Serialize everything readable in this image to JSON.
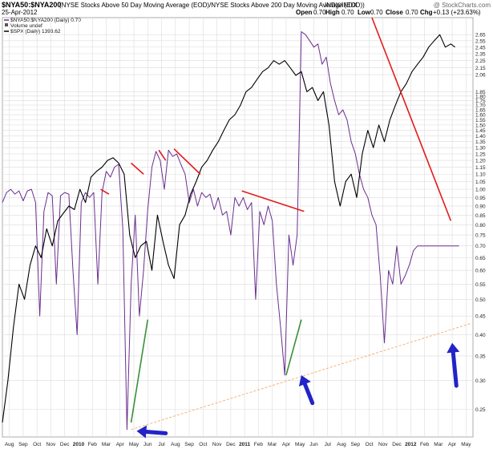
{
  "header": {
    "symbol": "$NYA50:$NYA200",
    "description": "(NYSE Stocks Above 50 Day Moving Average (EOD)/NYSE Stocks Above 200 Day Moving Average (EOD))",
    "exchange": "INDX/INDX",
    "date": "25-Apr-2012",
    "watermark": "@ StockCharts.com",
    "quote": {
      "open_label": "Open",
      "open": "0.70",
      "high_label": "High",
      "high": "0.70",
      "low_label": "Low",
      "low": "0.70",
      "close_label": "Close",
      "close": "0.70",
      "chg_label": "Chg",
      "chg": "+0.13 (+23.63%)"
    }
  },
  "legend": [
    {
      "label": "$NYA50:$NYA200 (Daily) 0.70",
      "color": "#6a2f8f",
      "marker": "line"
    },
    {
      "label": "Volume undef",
      "color": "#555555",
      "marker": "square"
    },
    {
      "label": "$SPX (Daily) 1393.62",
      "color": "#000000",
      "marker": "line"
    }
  ],
  "colors": {
    "ratio": "#6a2f8f",
    "spx": "#000000",
    "trend_red": "#e31b1b",
    "trend_green": "#3a8f3a",
    "support": "#f5b27a",
    "arrow": "#2323c8",
    "grid": "#dcdcdc"
  },
  "chart_data": {
    "type": "line",
    "yscale": "log",
    "ylim": [
      0.21,
      2.95
    ],
    "xlim": [
      0,
      45
    ],
    "y_ticks": [
      0.25,
      0.3,
      0.35,
      0.4,
      0.45,
      0.5,
      0.55,
      0.6,
      0.65,
      0.7,
      0.75,
      0.8,
      0.85,
      0.9,
      0.95,
      1.0,
      1.05,
      1.1,
      1.15,
      1.2,
      1.25,
      1.3,
      1.35,
      1.4,
      1.45,
      1.5,
      1.55,
      1.6,
      1.65,
      1.7,
      1.75,
      1.8,
      1.85,
      2.06,
      2.15,
      2.25,
      2.35,
      2.45,
      2.55,
      2.65
    ],
    "x_ticks": [
      {
        "label": "Aug",
        "x": 0.5,
        "bold": false
      },
      {
        "label": "Sep",
        "x": 1.5,
        "bold": false
      },
      {
        "label": "Oct",
        "x": 2.5,
        "bold": false
      },
      {
        "label": "Nov",
        "x": 3.5,
        "bold": false
      },
      {
        "label": "Dec",
        "x": 4.5,
        "bold": false
      },
      {
        "label": "2010",
        "x": 5.5,
        "bold": true
      },
      {
        "label": "Feb",
        "x": 6.5,
        "bold": false
      },
      {
        "label": "Mar",
        "x": 7.5,
        "bold": false
      },
      {
        "label": "Apr",
        "x": 8.5,
        "bold": false
      },
      {
        "label": "May",
        "x": 9.5,
        "bold": false
      },
      {
        "label": "Jun",
        "x": 10.5,
        "bold": false
      },
      {
        "label": "Jul",
        "x": 11.5,
        "bold": false
      },
      {
        "label": "Aug",
        "x": 12.5,
        "bold": false
      },
      {
        "label": "Sep",
        "x": 13.5,
        "bold": false
      },
      {
        "label": "Oct",
        "x": 14.5,
        "bold": false
      },
      {
        "label": "Nov",
        "x": 15.5,
        "bold": false
      },
      {
        "label": "Dec",
        "x": 16.5,
        "bold": false
      },
      {
        "label": "2011",
        "x": 17.5,
        "bold": true
      },
      {
        "label": "Feb",
        "x": 18.5,
        "bold": false
      },
      {
        "label": "Mar",
        "x": 19.5,
        "bold": false
      },
      {
        "label": "Apr",
        "x": 20.5,
        "bold": false
      },
      {
        "label": "May",
        "x": 21.5,
        "bold": false
      },
      {
        "label": "Jun",
        "x": 22.5,
        "bold": false
      },
      {
        "label": "Jul",
        "x": 23.5,
        "bold": false
      },
      {
        "label": "Aug",
        "x": 24.5,
        "bold": false
      },
      {
        "label": "Sep",
        "x": 25.5,
        "bold": false
      },
      {
        "label": "Oct",
        "x": 26.5,
        "bold": false
      },
      {
        "label": "Nov",
        "x": 27.5,
        "bold": false
      },
      {
        "label": "Dec",
        "x": 28.5,
        "bold": false
      },
      {
        "label": "2012",
        "x": 29.5,
        "bold": true
      },
      {
        "label": "Feb",
        "x": 30.5,
        "bold": false
      },
      {
        "label": "Mar",
        "x": 31.5,
        "bold": false
      },
      {
        "label": "Apr",
        "x": 32.5,
        "bold": false
      },
      {
        "label": "May",
        "x": 33.5,
        "bold": false
      }
    ],
    "grid": true,
    "series": [
      {
        "name": "$NYA50:$NYA200 (Daily)",
        "x": [
          0,
          0.3,
          0.6,
          0.9,
          1.2,
          1.5,
          1.8,
          2.1,
          2.4,
          2.7,
          3.0,
          3.3,
          3.6,
          3.9,
          4.2,
          4.5,
          4.8,
          5.1,
          5.4,
          5.7,
          6.0,
          6.3,
          6.6,
          6.9,
          7.2,
          7.5,
          7.8,
          8.1,
          8.4,
          8.7,
          9.0,
          9.3,
          9.6,
          9.9,
          10.2,
          10.5,
          10.8,
          11.1,
          11.4,
          11.7,
          12.0,
          12.3,
          12.6,
          12.9,
          13.2,
          13.5,
          13.8,
          14.1,
          14.4,
          14.7,
          15.0,
          15.3,
          15.6,
          15.9,
          16.2,
          16.5,
          16.8,
          17.1,
          17.4,
          17.7,
          18.0,
          18.3,
          18.6,
          18.9,
          19.2,
          19.5,
          19.8,
          20.1,
          20.4,
          20.7,
          21.0,
          21.3,
          21.6,
          21.9,
          22.2,
          22.5,
          22.8,
          23.1,
          23.4,
          23.7,
          24.0,
          24.3,
          24.6,
          24.9,
          25.2,
          25.5,
          25.8,
          26.1,
          26.4,
          26.7,
          27.0,
          27.3,
          27.6,
          27.9,
          28.2,
          28.5,
          28.8,
          29.1,
          29.4,
          29.7,
          30.0,
          30.3,
          30.6,
          30.9,
          31.2,
          31.5,
          31.8,
          32.1,
          32.4,
          32.7,
          33.0
        ],
        "values": [
          0.92,
          0.98,
          1.0,
          0.97,
          0.99,
          0.93,
          0.99,
          1.0,
          0.92,
          0.45,
          0.87,
          0.98,
          0.96,
          0.55,
          0.96,
          0.98,
          0.97,
          0.6,
          0.4,
          0.92,
          0.98,
          0.95,
          0.98,
          0.55,
          0.98,
          1.12,
          1.08,
          1.15,
          1.17,
          0.78,
          0.22,
          0.55,
          0.85,
          0.45,
          0.6,
          0.88,
          1.15,
          1.27,
          1.2,
          1.0,
          1.28,
          1.23,
          1.25,
          1.17,
          1.1,
          0.92,
          1.0,
          0.9,
          0.98,
          0.95,
          0.97,
          0.88,
          0.95,
          0.85,
          0.87,
          0.75,
          0.95,
          0.9,
          0.95,
          0.88,
          0.92,
          0.5,
          0.87,
          0.8,
          0.9,
          0.82,
          0.55,
          0.42,
          0.31,
          0.75,
          0.62,
          0.75,
          2.7,
          2.65,
          2.55,
          2.45,
          2.5,
          2.2,
          2.3,
          1.95,
          1.75,
          1.6,
          1.65,
          1.55,
          1.35,
          1.25,
          1.1,
          1.0,
          0.95,
          0.85,
          0.8,
          0.58,
          0.38,
          0.6,
          0.55,
          0.7,
          0.55,
          0.58,
          0.62,
          0.68,
          0.7,
          0.7,
          0.7,
          0.7,
          0.7,
          0.7,
          0.7,
          0.7,
          0.7,
          0.7,
          0.7
        ]
      },
      {
        "name": "$SPX (Daily)",
        "x": [
          0,
          0.4,
          0.8,
          1.2,
          1.6,
          2.0,
          2.4,
          2.8,
          3.2,
          3.6,
          4.0,
          4.4,
          4.8,
          5.2,
          5.6,
          6.0,
          6.4,
          6.8,
          7.2,
          7.6,
          8.0,
          8.4,
          8.8,
          9.2,
          9.6,
          10.0,
          10.4,
          10.8,
          11.2,
          11.6,
          12.0,
          12.4,
          12.8,
          13.2,
          13.6,
          14.0,
          14.4,
          14.8,
          15.2,
          15.6,
          16.0,
          16.4,
          16.8,
          17.2,
          17.6,
          18.0,
          18.4,
          18.8,
          19.2,
          19.6,
          20.0,
          20.4,
          20.8,
          21.2,
          21.6,
          22.0,
          22.4,
          22.8,
          23.2,
          23.6,
          24.0,
          24.4,
          24.8,
          25.2,
          25.6,
          26.0,
          26.4,
          26.8,
          27.2,
          27.6,
          28.0,
          28.4,
          28.8,
          29.2,
          29.6,
          30.0,
          30.4,
          30.8,
          31.2,
          31.6,
          32.0,
          32.4,
          32.7
        ],
        "values": [
          0.23,
          0.3,
          0.42,
          0.55,
          0.5,
          0.62,
          0.7,
          0.65,
          0.78,
          0.7,
          0.82,
          0.86,
          0.9,
          0.88,
          1.0,
          0.92,
          1.08,
          1.12,
          1.15,
          1.2,
          1.22,
          1.18,
          1.1,
          0.75,
          0.65,
          0.7,
          0.72,
          0.6,
          0.85,
          0.72,
          0.62,
          0.57,
          0.8,
          0.85,
          0.97,
          1.05,
          1.15,
          1.2,
          1.28,
          1.35,
          1.45,
          1.55,
          1.6,
          1.7,
          1.85,
          1.9,
          2.0,
          2.1,
          2.15,
          2.25,
          2.2,
          2.25,
          2.15,
          2.05,
          2.1,
          1.85,
          1.9,
          1.75,
          1.85,
          1.5,
          1.05,
          0.9,
          1.05,
          1.1,
          0.95,
          1.25,
          1.45,
          1.3,
          1.5,
          1.35,
          1.55,
          1.7,
          1.85,
          1.95,
          2.1,
          2.2,
          2.3,
          2.45,
          2.55,
          2.65,
          2.45,
          2.5,
          2.45
        ]
      }
    ],
    "annotations": {
      "red_trendlines": [
        {
          "x": [
            7.1,
            7.7
          ],
          "y": [
            1.0,
            0.97
          ]
        },
        {
          "x": [
            9.3,
            10.2
          ],
          "y": [
            1.18,
            1.1
          ]
        },
        {
          "x": [
            11.3,
            11.8
          ],
          "y": [
            1.28,
            1.2
          ]
        },
        {
          "x": [
            12.4,
            14.3
          ],
          "y": [
            1.29,
            1.1
          ]
        },
        {
          "x": [
            17.3,
            21.8
          ],
          "y": [
            0.99,
            0.87
          ]
        },
        {
          "x": [
            26.7,
            32.4
          ],
          "y": [
            2.95,
            0.82
          ]
        }
      ],
      "green_trendlines": [
        {
          "x": [
            9.3,
            10.5
          ],
          "y": [
            0.23,
            0.44
          ]
        },
        {
          "x": [
            20.5,
            21.6
          ],
          "y": [
            0.31,
            0.44
          ]
        }
      ],
      "support_line": {
        "x": [
          9.3,
          33.9
        ],
        "y": [
          0.22,
          0.43
        ]
      },
      "arrows": [
        {
          "from": [
            11.8,
            0.215
          ],
          "to": [
            9.7,
            0.218
          ]
        },
        {
          "from": [
            22.4,
            0.26
          ],
          "to": [
            21.6,
            0.31
          ]
        },
        {
          "from": [
            32.8,
            0.29
          ],
          "to": [
            32.5,
            0.38
          ]
        }
      ]
    }
  }
}
